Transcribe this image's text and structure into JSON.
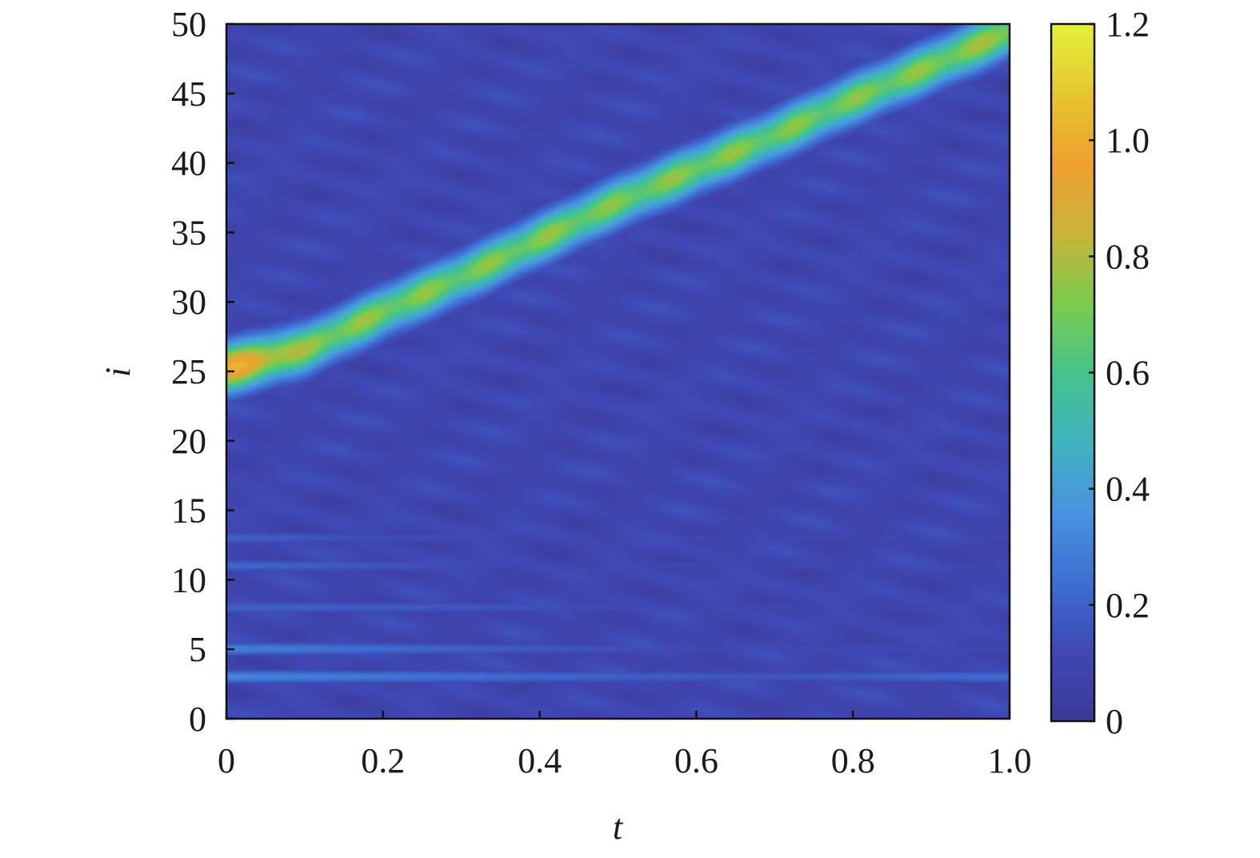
{
  "chart_data": {
    "type": "heatmap",
    "title": "",
    "xlabel": "t",
    "ylabel": "i",
    "xlim": [
      0,
      1.0
    ],
    "ylim": [
      0,
      50
    ],
    "xticks": [
      "0",
      "0.2",
      "0.4",
      "0.6",
      "0.8",
      "1.0"
    ],
    "xtick_values": [
      0,
      0.2,
      0.4,
      0.6,
      0.8,
      1.0
    ],
    "yticks": [
      "0",
      "5",
      "10",
      "15",
      "20",
      "25",
      "30",
      "35",
      "40",
      "45",
      "50"
    ],
    "ytick_values": [
      0,
      5,
      10,
      15,
      20,
      25,
      30,
      35,
      40,
      45,
      50
    ],
    "colorbar": {
      "range": [
        0,
        1.2
      ],
      "ticks": [
        "0",
        "0.2",
        "0.4",
        "0.6",
        "0.8",
        "1.0",
        "1.2"
      ],
      "tick_values": [
        0,
        0.2,
        0.4,
        0.6,
        0.8,
        1.0,
        1.2
      ],
      "colormap": "parula",
      "colors": [
        "#3b3a98",
        "#3f48b4",
        "#3d6fd2",
        "#4a93e0",
        "#3fb3bf",
        "#46c38c",
        "#7ccb4c",
        "#c9b33a",
        "#eea12e",
        "#e6c630",
        "#e2f23a"
      ]
    },
    "background_level": 0.1,
    "ridge": {
      "t": [
        0,
        0.1,
        0.2,
        0.3,
        0.4,
        0.5,
        0.6,
        0.7,
        0.8,
        0.9,
        1.0
      ],
      "i": [
        25.2,
        26.6,
        29.3,
        31.8,
        34.5,
        37.2,
        39.6,
        42.0,
        44.6,
        47.0,
        49.5
      ],
      "peak": [
        1.0,
        0.74,
        0.72,
        0.7,
        0.72,
        0.7,
        0.72,
        0.7,
        0.7,
        0.72,
        0.76
      ]
    },
    "row_features": [
      {
        "i": 3,
        "t": [
          0,
          0.4,
          0.7,
          1.0
        ],
        "value": [
          0.32,
          0.22,
          0.16,
          0.24
        ]
      },
      {
        "i": 5,
        "t": [
          0,
          0.3,
          0.6,
          1.0
        ],
        "value": [
          0.3,
          0.2,
          0.12,
          0.12
        ]
      },
      {
        "i": 8,
        "t": [
          0,
          0.3,
          0.6,
          1.0
        ],
        "value": [
          0.2,
          0.17,
          0.1,
          0.1
        ]
      },
      {
        "i": 11,
        "t": [
          0,
          0.15,
          0.4,
          1.0
        ],
        "value": [
          0.22,
          0.18,
          0.1,
          0.1
        ]
      },
      {
        "i": 13,
        "t": [
          0,
          0.15,
          0.4,
          1.0
        ],
        "value": [
          0.2,
          0.15,
          0.1,
          0.1
        ]
      }
    ]
  }
}
